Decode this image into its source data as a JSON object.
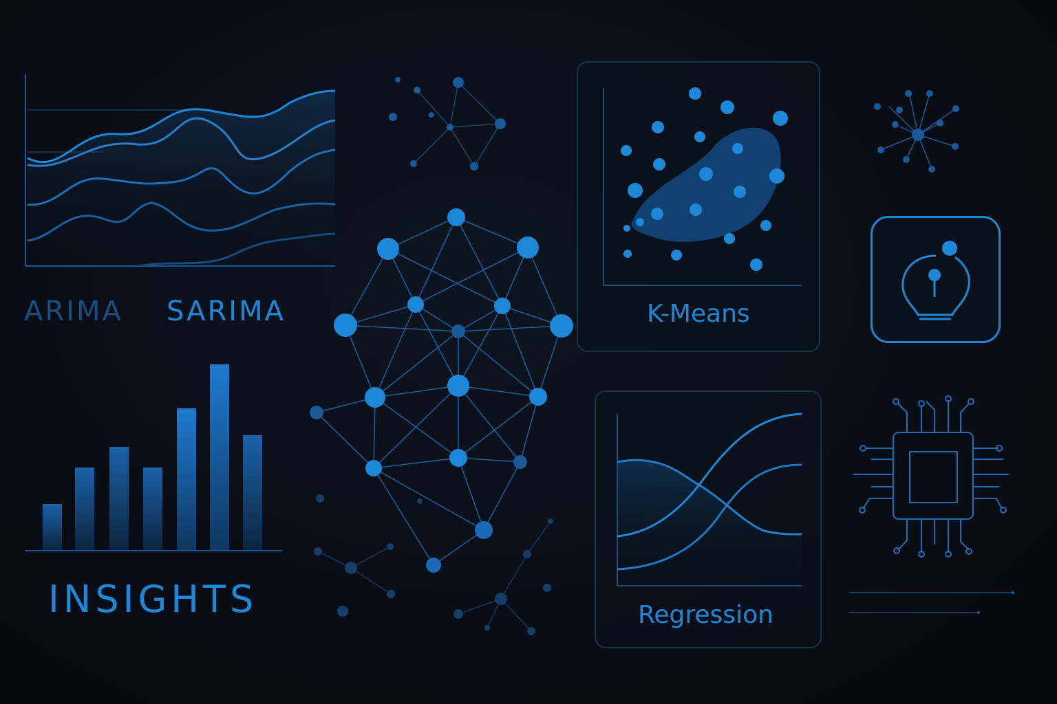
{
  "labels": {
    "arima": "ARIMA",
    "sarima": "SARIMA",
    "insights": "INSIGHTS",
    "kmeans": "K-Means",
    "regression": "Regression"
  },
  "colors": {
    "background": "#080c13",
    "accent": "#1e88d8",
    "accent_bright": "#2ba0f0",
    "accent_dim": "#1a4e80",
    "card_border": "#1d3247"
  },
  "icons": {
    "network": "neural-network-icon",
    "lightbulb": "lightbulb-icon",
    "chip": "cpu-chip-icon",
    "hub": "hub-network-icon"
  }
}
